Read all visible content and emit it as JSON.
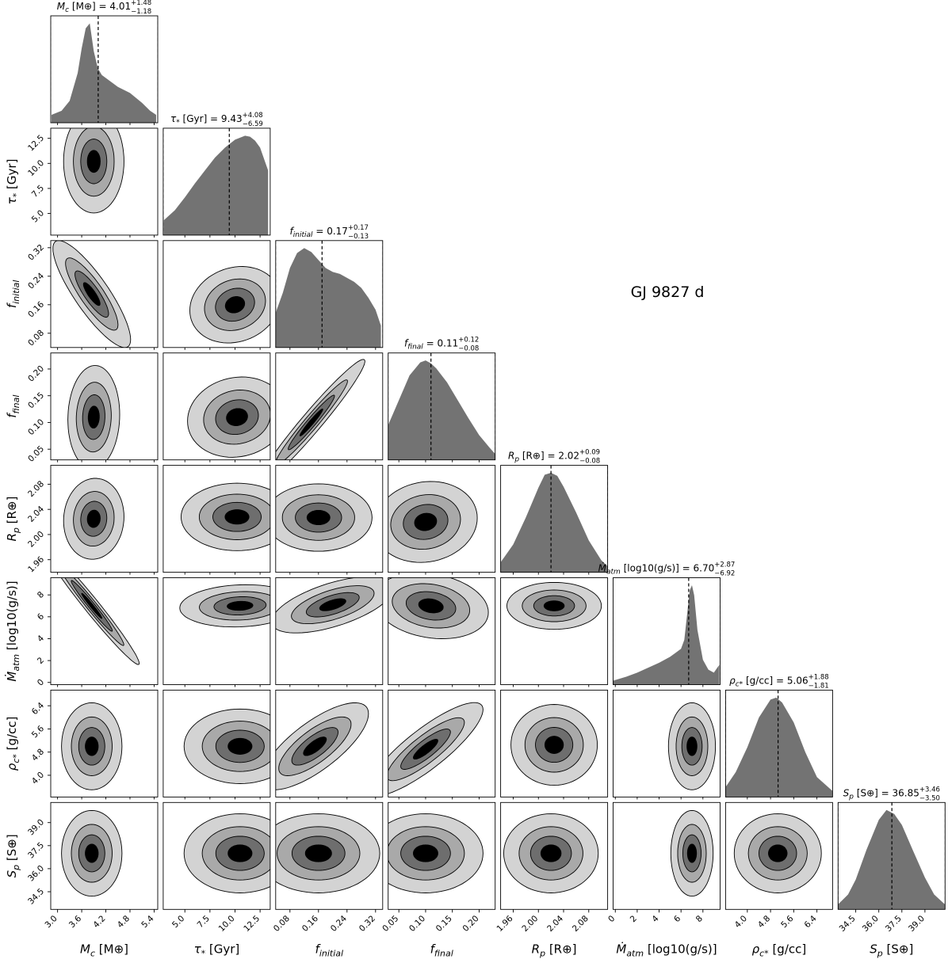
{
  "figure_title": "GJ 9827 d",
  "chart_data": {
    "type": "corner",
    "object_name": "GJ 9827 d",
    "parameters": [
      {
        "id": "Mc",
        "label": "M_c [M⊕]",
        "latex_sub": "c",
        "unit": "[M⊕]",
        "median": 4.01,
        "plus": 1.48,
        "minus": 1.18,
        "range": [
          2.83,
          5.49
        ],
        "ticks": [
          3.0,
          3.6,
          4.2,
          4.8,
          5.4
        ],
        "tick_labels": [
          "3.0",
          "3.6",
          "4.2",
          "4.8",
          "5.4"
        ]
      },
      {
        "id": "tau",
        "label": "τ* [Gyr]",
        "latex_sub": "*",
        "unit": "[Gyr]",
        "median": 9.43,
        "plus": 4.08,
        "minus": 6.59,
        "range": [
          2.84,
          13.51
        ],
        "ticks": [
          5.0,
          7.5,
          10.0,
          12.5
        ],
        "tick_labels": [
          "5.0",
          "7.5",
          "10.0",
          "12.5"
        ]
      },
      {
        "id": "finit",
        "label": "f_initial",
        "latex_sub": "initial",
        "unit": "",
        "median": 0.17,
        "plus": 0.17,
        "minus": 0.13,
        "range": [
          0.04,
          0.34
        ],
        "ticks": [
          0.08,
          0.16,
          0.24,
          0.32
        ],
        "tick_labels": [
          "0.08",
          "0.16",
          "0.24",
          "0.32"
        ]
      },
      {
        "id": "ffinal",
        "label": "f_final",
        "latex_sub": "final",
        "unit": "",
        "median": 0.11,
        "plus": 0.12,
        "minus": 0.08,
        "range": [
          0.03,
          0.23
        ],
        "ticks": [
          0.05,
          0.1,
          0.15,
          0.2
        ],
        "tick_labels": [
          "0.05",
          "0.10",
          "0.15",
          "0.20"
        ]
      },
      {
        "id": "Rp",
        "label": "R_p [R⊕]",
        "latex_sub": "p",
        "unit": "[R⊕]",
        "median": 2.02,
        "plus": 0.09,
        "minus": 0.08,
        "range": [
          1.94,
          2.11
        ],
        "ticks": [
          1.96,
          2.0,
          2.04,
          2.08
        ],
        "tick_labels": [
          "1.96",
          "2.00",
          "2.04",
          "2.08"
        ]
      },
      {
        "id": "Mdot",
        "label": "Ṁ_atm [log10(g/s)]",
        "latex_sub": "atm",
        "unit": "[log10(g/s)]",
        "median": 6.7,
        "plus": 2.87,
        "minus": 6.92,
        "range": [
          -0.2,
          9.57
        ],
        "ticks": [
          0,
          2,
          4,
          6,
          8
        ],
        "tick_labels": [
          "0",
          "2",
          "4",
          "6",
          "8"
        ]
      },
      {
        "id": "rho",
        "label": "ρ_c* [g/cc]",
        "latex_sub": "c*",
        "unit": "[g/cc]",
        "median": 5.06,
        "plus": 1.88,
        "minus": 1.81,
        "range": [
          3.25,
          6.94
        ],
        "ticks": [
          4.0,
          4.8,
          5.6,
          6.4
        ],
        "tick_labels": [
          "4.0",
          "4.8",
          "5.6",
          "6.4"
        ]
      },
      {
        "id": "Sp",
        "label": "S_p [S⊕]",
        "latex_sub": "p",
        "unit": "[S⊕]",
        "median": 36.85,
        "plus": 3.46,
        "minus": 3.5,
        "range": [
          33.35,
          40.31
        ],
        "ticks": [
          34.5,
          36.0,
          37.5,
          39.0
        ],
        "tick_labels": [
          "34.5",
          "36.0",
          "37.5",
          "39.0"
        ]
      }
    ],
    "titles": [
      "M_c [M⊕] = 4.01 +1.48 −1.18",
      "τ* [Gyr] = 9.43 +4.08 −6.59",
      "f_initial = 0.17 +0.17 −0.13",
      "f_final = 0.11 +0.12 −0.08",
      "R_p [R⊕] = 2.02 +0.09 −0.08",
      "Ṁ_atm [log10(g/s)] = 6.70 +2.87 −6.92",
      "ρ_c* [g/cc] = 5.06 +1.88 −1.81",
      "S_p [S⊕] = 36.85 +3.46 −3.50"
    ],
    "title_parts": [
      {
        "lhs": "M",
        "sub": "c",
        "unit": " [M⊕]",
        "val": "4.01",
        "plus": "+1.48",
        "minus": "−1.18"
      },
      {
        "lhs": "τ",
        "sub": "*",
        "unit": " [Gyr]",
        "val": "9.43",
        "plus": "+4.08",
        "minus": "−6.59"
      },
      {
        "lhs": "f",
        "sub": "initial",
        "unit": "",
        "val": "0.17",
        "plus": "+0.17",
        "minus": "−0.13"
      },
      {
        "lhs": "f",
        "sub": "final",
        "unit": "",
        "val": "0.11",
        "plus": "+0.12",
        "minus": "−0.08"
      },
      {
        "lhs": "R",
        "sub": "p",
        "unit": " [R⊕]",
        "val": "2.02",
        "plus": "+0.09",
        "minus": "−0.08"
      },
      {
        "lhs": "Ṁ",
        "sub": "atm",
        "unit": " [log10(g/s)]",
        "val": "6.70",
        "plus": "+2.87",
        "minus": "−6.92"
      },
      {
        "lhs": "ρ",
        "sub": "c*",
        "unit": " [g/cc]",
        "val": "5.06",
        "plus": "+1.88",
        "minus": "−1.81"
      },
      {
        "lhs": "S",
        "sub": "p",
        "unit": " [S⊕]",
        "val": "36.85",
        "plus": "+3.46",
        "minus": "−3.50"
      }
    ],
    "histograms": [
      {
        "x": [
          2.85,
          3.1,
          3.3,
          3.5,
          3.6,
          3.7,
          3.8,
          3.9,
          4.0,
          4.1,
          4.3,
          4.5,
          4.8,
          5.1,
          5.3,
          5.45
        ],
        "y": [
          0.08,
          0.12,
          0.22,
          0.5,
          0.75,
          0.95,
          1.0,
          0.72,
          0.55,
          0.48,
          0.42,
          0.36,
          0.3,
          0.2,
          0.12,
          0.08
        ]
      },
      {
        "x": [
          2.9,
          4,
          5,
          6,
          7,
          8,
          9,
          10,
          10.5,
          11,
          11.5,
          12,
          12.5,
          13.3
        ],
        "y": [
          0.15,
          0.25,
          0.38,
          0.52,
          0.65,
          0.78,
          0.88,
          0.96,
          0.98,
          1.0,
          0.99,
          0.95,
          0.88,
          0.65
        ]
      },
      {
        "x": [
          0.04,
          0.06,
          0.08,
          0.1,
          0.12,
          0.14,
          0.16,
          0.18,
          0.2,
          0.22,
          0.24,
          0.26,
          0.28,
          0.3,
          0.32,
          0.335
        ],
        "y": [
          0.35,
          0.55,
          0.8,
          0.95,
          1.0,
          0.96,
          0.88,
          0.8,
          0.76,
          0.74,
          0.7,
          0.66,
          0.6,
          0.5,
          0.38,
          0.22
        ]
      },
      {
        "x": [
          0.03,
          0.05,
          0.07,
          0.09,
          0.1,
          0.11,
          0.12,
          0.14,
          0.16,
          0.18,
          0.2,
          0.22,
          0.23
        ],
        "y": [
          0.35,
          0.6,
          0.85,
          0.98,
          1.0,
          0.97,
          0.92,
          0.78,
          0.6,
          0.42,
          0.25,
          0.12,
          0.06
        ]
      },
      {
        "x": [
          1.94,
          1.96,
          1.98,
          2.0,
          2.01,
          2.02,
          2.03,
          2.04,
          2.06,
          2.08,
          2.1,
          2.11
        ],
        "y": [
          0.1,
          0.28,
          0.55,
          0.85,
          0.98,
          1.0,
          0.97,
          0.86,
          0.6,
          0.32,
          0.12,
          0.06
        ]
      },
      {
        "x": [
          -0.2,
          1,
          2,
          3,
          4,
          5,
          5.5,
          6,
          6.3,
          6.6,
          6.8,
          7.0,
          7.2,
          7.5,
          8,
          8.5,
          9.0,
          9.5
        ],
        "y": [
          0.04,
          0.08,
          0.12,
          0.17,
          0.22,
          0.28,
          0.32,
          0.36,
          0.45,
          0.75,
          0.95,
          1.0,
          0.9,
          0.55,
          0.25,
          0.15,
          0.12,
          0.2
        ]
      },
      {
        "x": [
          3.25,
          3.6,
          4.0,
          4.4,
          4.8,
          5.0,
          5.2,
          5.6,
          6.0,
          6.4,
          6.94
        ],
        "y": [
          0.1,
          0.25,
          0.5,
          0.8,
          0.98,
          1.0,
          0.95,
          0.75,
          0.45,
          0.2,
          0.06
        ]
      },
      {
        "x": [
          33.35,
          34.0,
          34.5,
          35.2,
          36.0,
          36.5,
          37.0,
          37.5,
          38.2,
          39.0,
          39.6,
          40.3
        ],
        "y": [
          0.05,
          0.15,
          0.3,
          0.6,
          0.9,
          1.0,
          0.96,
          0.85,
          0.6,
          0.32,
          0.15,
          0.05
        ]
      }
    ],
    "density_2d": [
      {
        "row": 1,
        "col": 0,
        "cx": 3.9,
        "cy": 10.2,
        "sx": 0.35,
        "sy": 2.4,
        "rho": 0.0
      },
      {
        "row": 2,
        "col": 0,
        "cx": 3.85,
        "cy": 0.19,
        "sx": 0.45,
        "sy": 0.07,
        "rho": -0.85
      },
      {
        "row": 2,
        "col": 1,
        "cx": 10.0,
        "cy": 0.16,
        "sx": 2.1,
        "sy": 0.05,
        "rho": 0.15
      },
      {
        "row": 3,
        "col": 0,
        "cx": 3.9,
        "cy": 0.11,
        "sx": 0.3,
        "sy": 0.045,
        "rho": 0.05
      },
      {
        "row": 3,
        "col": 1,
        "cx": 10.2,
        "cy": 0.11,
        "sx": 2.3,
        "sy": 0.035,
        "rho": 0.1
      },
      {
        "row": 3,
        "col": 2,
        "cx": 0.14,
        "cy": 0.1,
        "sx": 0.07,
        "sy": 0.055,
        "rho": 0.97
      },
      {
        "row": 4,
        "col": 0,
        "cx": 3.9,
        "cy": 2.025,
        "sx": 0.35,
        "sy": 0.03,
        "rho": 0.05
      },
      {
        "row": 4,
        "col": 1,
        "cx": 10.2,
        "cy": 2.028,
        "sx": 2.6,
        "sy": 0.025,
        "rho": 0.0
      },
      {
        "row": 4,
        "col": 2,
        "cx": 0.16,
        "cy": 2.027,
        "sx": 0.07,
        "sy": 0.025,
        "rho": 0.0
      },
      {
        "row": 4,
        "col": 3,
        "cx": 0.1,
        "cy": 2.02,
        "sx": 0.045,
        "sy": 0.03,
        "rho": 0.1
      },
      {
        "row": 5,
        "col": 0,
        "cx": 3.85,
        "cy": 7.0,
        "sx": 0.55,
        "sy": 2.5,
        "rho": -0.98
      },
      {
        "row": 5,
        "col": 1,
        "cx": 10.5,
        "cy": 7.0,
        "sx": 2.8,
        "sy": 0.9,
        "rho": 0.1
      },
      {
        "row": 5,
        "col": 2,
        "cx": 0.2,
        "cy": 7.1,
        "sx": 0.08,
        "sy": 1.2,
        "rho": 0.6
      },
      {
        "row": 5,
        "col": 3,
        "cx": 0.11,
        "cy": 7.0,
        "sx": 0.05,
        "sy": 1.4,
        "rho": -0.2
      },
      {
        "row": 5,
        "col": 4,
        "cx": 2.025,
        "cy": 7.0,
        "sx": 0.035,
        "sy": 1.0,
        "rho": 0.0
      },
      {
        "row": 6,
        "col": 0,
        "cx": 3.85,
        "cy": 5.0,
        "sx": 0.35,
        "sy": 0.7,
        "rho": 0.0
      },
      {
        "row": 6,
        "col": 1,
        "cx": 10.5,
        "cy": 5.0,
        "sx": 2.6,
        "sy": 0.6,
        "rho": 0.0
      },
      {
        "row": 6,
        "col": 2,
        "cx": 0.15,
        "cy": 5.0,
        "sx": 0.07,
        "sy": 0.7,
        "rho": 0.75
      },
      {
        "row": 6,
        "col": 3,
        "cx": 0.1,
        "cy": 4.9,
        "sx": 0.05,
        "sy": 0.75,
        "rho": 0.85
      },
      {
        "row": 6,
        "col": 4,
        "cx": 2.025,
        "cy": 5.05,
        "sx": 0.032,
        "sy": 0.65,
        "rho": 0.0
      },
      {
        "row": 6,
        "col": 5,
        "cx": 7.0,
        "cy": 5.0,
        "sx": 1.0,
        "sy": 0.7,
        "rho": 0.0
      },
      {
        "row": 7,
        "col": 0,
        "cx": 3.85,
        "cy": 37.0,
        "sx": 0.35,
        "sy": 1.3,
        "rho": 0.0
      },
      {
        "row": 7,
        "col": 1,
        "cx": 10.5,
        "cy": 37.0,
        "sx": 2.6,
        "sy": 1.2,
        "rho": 0.0
      },
      {
        "row": 7,
        "col": 2,
        "cx": 0.16,
        "cy": 37.0,
        "sx": 0.08,
        "sy": 1.2,
        "rho": 0.0
      },
      {
        "row": 7,
        "col": 3,
        "cx": 0.1,
        "cy": 37.0,
        "sx": 0.05,
        "sy": 1.2,
        "rho": 0.0
      },
      {
        "row": 7,
        "col": 4,
        "cx": 2.02,
        "cy": 37.0,
        "sx": 0.035,
        "sy": 1.2,
        "rho": 0.0
      },
      {
        "row": 7,
        "col": 5,
        "cx": 7.0,
        "cy": 37.0,
        "sx": 0.9,
        "sy": 1.3,
        "rho": 0.0
      },
      {
        "row": 7,
        "col": 6,
        "cx": 5.05,
        "cy": 37.0,
        "sx": 0.7,
        "sy": 1.2,
        "rho": 0.0
      }
    ],
    "contour_levels": [
      0.1,
      0.35,
      0.65,
      0.9
    ],
    "contour_fill_colors": [
      "#d3d3d3",
      "#a9a9a9",
      "#6e6e6e",
      "#000000"
    ],
    "hist_fill_color": "#737373",
    "median_line": "dashed",
    "grid": false
  }
}
